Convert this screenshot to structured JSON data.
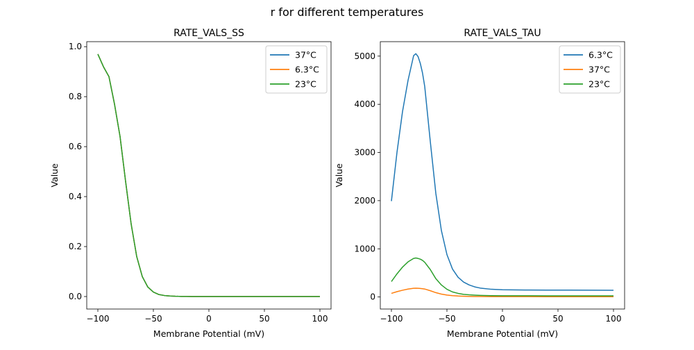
{
  "figure": {
    "suptitle": "r for different temperatures"
  },
  "chart_data": [
    {
      "type": "line",
      "title": "RATE_VALS_SS",
      "xlabel": "Membrane Potential (mV)",
      "ylabel": "Value",
      "xlim": [
        -110,
        110
      ],
      "ylim": [
        -0.05,
        1.02
      ],
      "xticks": [
        -100,
        -50,
        0,
        50,
        100
      ],
      "xtick_labels": [
        "−100",
        "−50",
        "0",
        "50",
        "100"
      ],
      "yticks": [
        0.0,
        0.2,
        0.4,
        0.6,
        0.8,
        1.0
      ],
      "ytick_labels": [
        "0.0",
        "0.2",
        "0.4",
        "0.6",
        "0.8",
        "1.0"
      ],
      "legend_position": "top-right",
      "x": [
        -100,
        -95,
        -90,
        -85,
        -80,
        -75,
        -70,
        -65,
        -60,
        -55,
        -50,
        -45,
        -40,
        -35,
        -30,
        -25,
        -20,
        -15,
        -10,
        -5,
        0,
        10,
        20,
        30,
        40,
        50,
        60,
        70,
        80,
        90,
        100
      ],
      "series": [
        {
          "name": "37°C",
          "color": "#1f77b4",
          "values": [
            0.97,
            0.92,
            0.88,
            0.77,
            0.64,
            0.46,
            0.29,
            0.16,
            0.08,
            0.038,
            0.018,
            0.008,
            0.004,
            0.002,
            0.001,
            0.0005,
            0.0003,
            0.0002,
            0.0001,
            0,
            0,
            0,
            0,
            0,
            0,
            0,
            0,
            0,
            0,
            0,
            0
          ]
        },
        {
          "name": "6.3°C",
          "color": "#ff7f0e",
          "values": [
            0.97,
            0.92,
            0.88,
            0.77,
            0.64,
            0.46,
            0.29,
            0.16,
            0.08,
            0.038,
            0.018,
            0.008,
            0.004,
            0.002,
            0.001,
            0.0005,
            0.0003,
            0.0002,
            0.0001,
            0,
            0,
            0,
            0,
            0,
            0,
            0,
            0,
            0,
            0,
            0,
            0
          ]
        },
        {
          "name": "23°C",
          "color": "#2ca02c",
          "values": [
            0.97,
            0.92,
            0.88,
            0.77,
            0.64,
            0.46,
            0.29,
            0.16,
            0.08,
            0.038,
            0.018,
            0.008,
            0.004,
            0.002,
            0.001,
            0.0005,
            0.0003,
            0.0002,
            0.0001,
            0,
            0,
            0,
            0,
            0,
            0,
            0,
            0,
            0,
            0,
            0,
            0
          ]
        }
      ]
    },
    {
      "type": "line",
      "title": "RATE_VALS_TAU",
      "xlabel": "Membrane Potential (mV)",
      "ylabel": "Value",
      "xlim": [
        -110,
        110
      ],
      "ylim": [
        -250,
        5300
      ],
      "xticks": [
        -100,
        -50,
        0,
        50,
        100
      ],
      "xtick_labels": [
        "−100",
        "−50",
        "0",
        "50",
        "100"
      ],
      "yticks": [
        0,
        1000,
        2000,
        3000,
        4000,
        5000
      ],
      "ytick_labels": [
        "0",
        "1000",
        "2000",
        "3000",
        "4000",
        "5000"
      ],
      "legend_position": "top-right",
      "x": [
        -100,
        -95,
        -90,
        -85,
        -80,
        -78,
        -76,
        -74,
        -72,
        -70,
        -65,
        -60,
        -55,
        -50,
        -45,
        -40,
        -35,
        -30,
        -25,
        -20,
        -10,
        0,
        20,
        40,
        60,
        80,
        100
      ],
      "series": [
        {
          "name": "6.3°C",
          "color": "#1f77b4",
          "values": [
            1990,
            3000,
            3850,
            4500,
            5010,
            5050,
            4990,
            4850,
            4650,
            4370,
            3230,
            2150,
            1380,
            880,
            580,
            410,
            310,
            250,
            210,
            185,
            160,
            150,
            145,
            143,
            142,
            141,
            140
          ]
        },
        {
          "name": "37°C",
          "color": "#ff7f0e",
          "values": [
            75,
            110,
            140,
            165,
            180,
            182,
            180,
            177,
            172,
            165,
            130,
            90,
            60,
            40,
            28,
            20,
            15,
            12,
            10,
            9,
            8,
            7,
            7,
            6,
            6,
            6,
            6
          ]
        },
        {
          "name": "23°C",
          "color": "#2ca02c",
          "values": [
            320,
            480,
            620,
            730,
            800,
            810,
            800,
            785,
            760,
            720,
            570,
            380,
            250,
            160,
            105,
            75,
            55,
            45,
            38,
            33,
            28,
            26,
            25,
            24,
            24,
            24,
            24
          ]
        }
      ]
    }
  ]
}
